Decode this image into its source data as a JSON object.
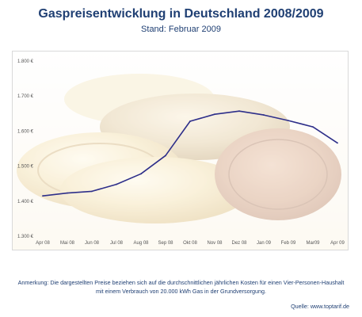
{
  "header": {
    "title": "Gaspreisentwicklung in Deutschland 2008/2009",
    "subtitle": "Stand: Februar 2009"
  },
  "footer": {
    "note_line1": "Anmerkung: Die dargestellten Preise beziehen sich auf die durchschnittlichen jährlichen Kosten für einen Vier-Personen-Haushalt",
    "note_line2": "mit einem Verbrauch von 20.000 kWh Gas in der Grundversorgung.",
    "source": "Quelle: www.toptarif.de"
  },
  "colors": {
    "title": "#1f3f73",
    "line": "#2e2f8a",
    "axis_text": "#555555",
    "background_coins": "#e8c98a"
  },
  "chart_data": {
    "type": "line",
    "categories": [
      "Apr 08",
      "Mai 08",
      "Jun 08",
      "Jul 08",
      "Aug 08",
      "Sep 08",
      "Okt 08",
      "Nov 08",
      "Dez 08",
      "Jan 09",
      "Feb 09",
      "Mar09",
      "Apr 09"
    ],
    "values": [
      1415,
      1423,
      1428,
      1448,
      1478,
      1530,
      1628,
      1648,
      1657,
      1646,
      1630,
      1612,
      1566
    ],
    "y_ticks": [
      {
        "value": 1300,
        "label": "1.300 €"
      },
      {
        "value": 1400,
        "label": "1.400 €"
      },
      {
        "value": 1500,
        "label": "1.500 €"
      },
      {
        "value": 1600,
        "label": "1.600 €"
      },
      {
        "value": 1700,
        "label": "1.700 €"
      },
      {
        "value": 1800,
        "label": "1.800 €"
      }
    ],
    "ylim": [
      1300,
      1800
    ],
    "grid": false,
    "title": "",
    "xlabel": "",
    "ylabel": ""
  }
}
